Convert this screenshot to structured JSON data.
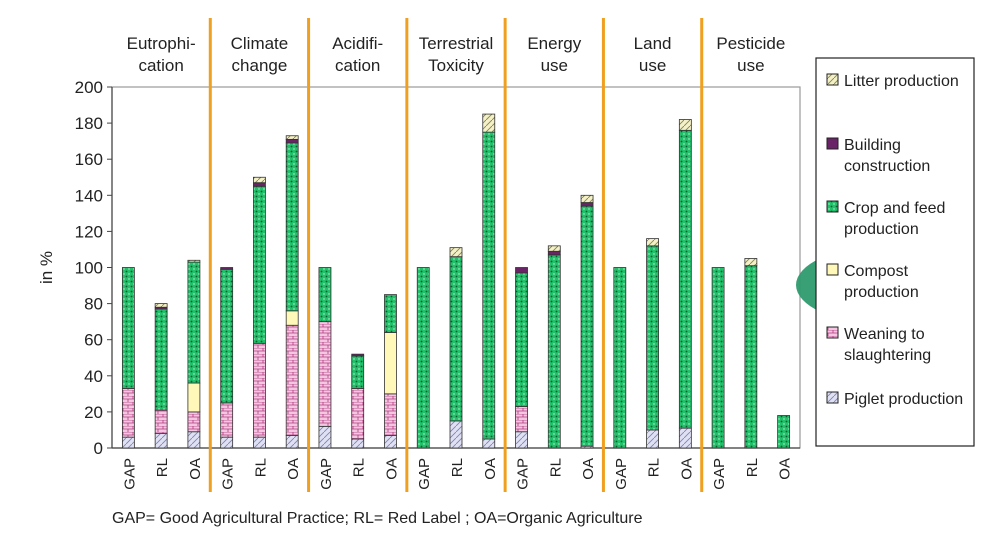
{
  "chart_data": {
    "type": "bar",
    "stacked": true,
    "ylabel": "in %",
    "ylim": [
      0,
      200
    ],
    "yticks": [
      0,
      20,
      40,
      60,
      80,
      100,
      120,
      140,
      160,
      180,
      200
    ],
    "grid": false,
    "legend_position": "right",
    "groups": [
      {
        "label": "Eutrophi-\ncation",
        "categories": [
          "GAP",
          "RL",
          "OA"
        ]
      },
      {
        "label": "Climate\nchange",
        "categories": [
          "GAP",
          "RL",
          "OA"
        ]
      },
      {
        "label": "Acidifi-\ncation",
        "categories": [
          "GAP",
          "RL",
          "OA"
        ]
      },
      {
        "label": "Terrestrial\nToxicity",
        "categories": [
          "GAP",
          "RL",
          "OA"
        ]
      },
      {
        "label": "Energy\nuse",
        "categories": [
          "GAP",
          "RL",
          "OA"
        ]
      },
      {
        "label": "Land\nuse",
        "categories": [
          "GAP",
          "RL",
          "OA"
        ]
      },
      {
        "label": "Pesticide\nuse",
        "categories": [
          "GAP",
          "RL",
          "OA"
        ]
      }
    ],
    "series": [
      {
        "name": "Piglet production",
        "color": "#dfe0f2",
        "pattern": "hatch",
        "values": [
          6,
          8,
          9,
          6,
          6,
          7,
          12,
          5,
          7,
          0,
          15,
          5,
          9,
          0,
          1,
          0,
          10,
          11,
          0,
          0,
          0
        ]
      },
      {
        "name": "Weaning to slaughtering",
        "color": "#f3c6e2",
        "pattern": "brick",
        "values": [
          27,
          13,
          11,
          19,
          52,
          61,
          58,
          28,
          23,
          0,
          0,
          0,
          14,
          0,
          0,
          0,
          0,
          0,
          0,
          0,
          0
        ]
      },
      {
        "name": "Compost production",
        "color": "#fff8b8",
        "pattern": "solid",
        "values": [
          0,
          0,
          16,
          0,
          0,
          8,
          0,
          0,
          34,
          0,
          0,
          0,
          0,
          0,
          0,
          0,
          0,
          0,
          0,
          0,
          0
        ]
      },
      {
        "name": "Crop and feed production",
        "color": "#22c06a",
        "pattern": "dots",
        "values": [
          67,
          56,
          67,
          74,
          87,
          93,
          30,
          18,
          21,
          100,
          91,
          170,
          74,
          107,
          133,
          100,
          102,
          165,
          100,
          101,
          18
        ]
      },
      {
        "name": "Building construction",
        "color": "#6a2366",
        "pattern": "solid",
        "values": [
          0,
          1,
          0,
          1,
          2,
          2,
          0,
          1,
          0,
          0,
          0,
          0,
          3,
          2,
          2,
          0,
          0,
          0,
          0,
          0,
          0
        ]
      },
      {
        "name": "Litter production",
        "color": "#f5f0c8",
        "pattern": "hatch",
        "values": [
          0,
          2,
          1,
          0,
          3,
          2,
          0,
          0,
          0,
          0,
          5,
          10,
          0,
          3,
          4,
          0,
          4,
          6,
          0,
          4,
          0
        ]
      }
    ]
  },
  "legend": [
    {
      "label": "Litter production",
      "key": "Litter production"
    },
    {
      "label": "Building\nconstruction",
      "key": "Building construction"
    },
    {
      "label": "Crop and feed\nproduction",
      "key": "Crop and feed production"
    },
    {
      "label": "Compost\nproduction",
      "key": "Compost production"
    },
    {
      "label": "Weaning to\nslaughtering",
      "key": "Weaning to slaughtering"
    },
    {
      "label": "Piglet production",
      "key": "Piglet production"
    }
  ],
  "caption": "GAP= Good Agricultural Practice;   RL= Red Label ;  OA=Organic Agriculture",
  "colors": {
    "divider": "#f0a020",
    "highlight": "#2e9a6e",
    "axis": "#444444"
  }
}
